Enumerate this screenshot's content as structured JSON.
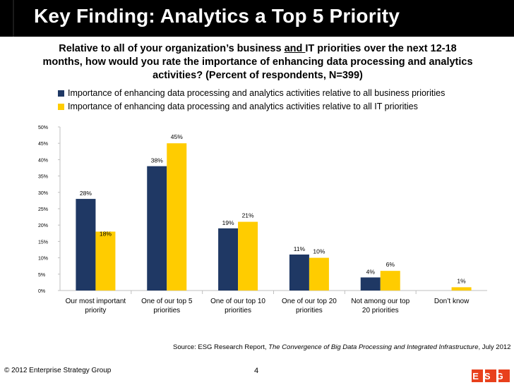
{
  "slide": {
    "title": "Key Finding:  Analytics a Top 5 Priority",
    "subtitle_pre": "Relative to all of your organization’s business ",
    "subtitle_underlined": "and ",
    "subtitle_post": "IT priorities over the next 12-18 months, how would you rate the importance of enhancing data processing and analytics activities? (Percent of respondents, N=399)",
    "source_prefix": "Source: ESG Research Report, ",
    "source_title": "The Convergence of Big Data Processing and Integrated Infrastructure",
    "source_suffix": ", July 2012",
    "copyright": "© 2012 Enterprise Strategy Group",
    "page_number": "4",
    "logo_text": "ESG"
  },
  "colors": {
    "series1": "#1f3864",
    "series2": "#ffcc00",
    "axis": "#bfbfbf",
    "logo_red": "#e8401c"
  },
  "chart_data": {
    "type": "bar",
    "title": "",
    "xlabel": "",
    "ylabel": "",
    "ylim": [
      0,
      50
    ],
    "y_ticks": [
      "0%",
      "5%",
      "10%",
      "15%",
      "20%",
      "25%",
      "30%",
      "35%",
      "40%",
      "45%",
      "50%"
    ],
    "categories": [
      "Our most important priority",
      "One of our top 5 priorities",
      "One of our top 10 priorities",
      "One of our top 20 priorities",
      "Not among our top 20 priorities",
      "Don’t know"
    ],
    "series": [
      {
        "name": "Importance of enhancing data processing and analytics activities relative to all business priorities",
        "values": [
          28,
          38,
          19,
          11,
          4,
          null
        ],
        "labels": [
          "28%",
          "38%",
          "19%",
          "11%",
          "4%",
          ""
        ]
      },
      {
        "name": "Importance of enhancing data processing and analytics activities relative to all IT priorities",
        "values": [
          18,
          45,
          21,
          10,
          6,
          1
        ],
        "labels": [
          "18%",
          "45%",
          "21%",
          "10%",
          "6%",
          "1%"
        ]
      }
    ],
    "legend_position": "top"
  }
}
